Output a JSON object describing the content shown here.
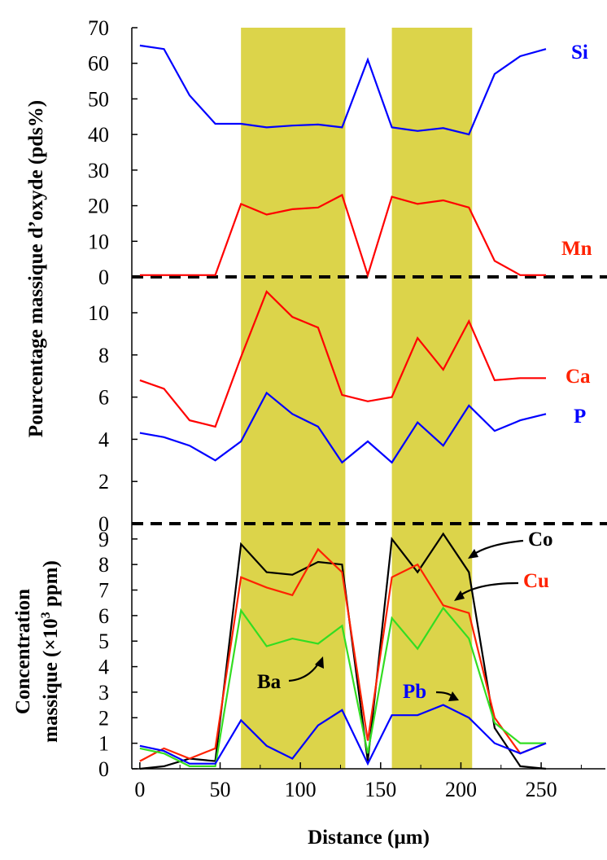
{
  "chart_data": {
    "type": "line",
    "xlabel": "Distance (µm)",
    "x_ticks": [
      "0",
      "50",
      "100",
      "150",
      "200",
      "250"
    ],
    "xlim": [
      -5,
      290
    ],
    "colors": {
      "band": "#dcd44a",
      "Si": "#0000ff",
      "Mn": "#ff0000",
      "Ca": "#ff0000",
      "P": "#0000ff",
      "Co": "#000000",
      "Cu": "#ff2200",
      "Ba": "#33dd22",
      "Pb": "#0000ff"
    },
    "shaded_bands": [
      [
        63,
        128
      ],
      [
        157,
        207
      ]
    ],
    "panels": [
      {
        "id": "top",
        "ylabel": "Pourcentage massique d’oxyde (pds%)",
        "ylim": [
          0,
          70
        ],
        "y_ticks": [
          "0",
          "10",
          "20",
          "30",
          "40",
          "50",
          "60",
          "70"
        ],
        "series": [
          {
            "name": "Si",
            "x": [
              0,
              15,
              31,
              47,
              63,
              79,
              95,
              111,
              126,
              142,
              157,
              173,
              189,
              205,
              221,
              237,
              253
            ],
            "values": [
              65,
              64,
              51,
              43,
              43,
              42,
              42.5,
              42.8,
              42,
              61,
              42,
              41,
              41.8,
              40,
              57,
              62,
              64
            ]
          },
          {
            "name": "Mn",
            "x": [
              0,
              15,
              31,
              47,
              63,
              79,
              95,
              111,
              126,
              142,
              157,
              173,
              189,
              205,
              221,
              237,
              253
            ],
            "values": [
              0.5,
              0.5,
              0.5,
              0.5,
              20.5,
              17.5,
              19,
              19.5,
              23,
              0.5,
              22.5,
              20.5,
              21.5,
              19.5,
              4.5,
              0.5,
              0.5
            ]
          }
        ]
      },
      {
        "id": "middle",
        "ylim": [
          0,
          11.7
        ],
        "y_ticks": [
          "0",
          "2",
          "4",
          "6",
          "8",
          "10"
        ],
        "series": [
          {
            "name": "Ca",
            "x": [
              0,
              15,
              31,
              47,
              63,
              79,
              95,
              111,
              126,
              142,
              157,
              173,
              189,
              205,
              221,
              237,
              253
            ],
            "values": [
              6.8,
              6.4,
              4.9,
              4.6,
              7.9,
              11,
              9.8,
              9.3,
              6.1,
              5.8,
              6,
              8.8,
              7.3,
              9.6,
              6.8,
              6.9,
              6.9
            ]
          },
          {
            "name": "P",
            "x": [
              0,
              15,
              31,
              47,
              63,
              79,
              95,
              111,
              126,
              142,
              157,
              173,
              189,
              205,
              221,
              237,
              253
            ],
            "values": [
              4.3,
              4.1,
              3.7,
              3,
              3.9,
              6.2,
              5.2,
              4.6,
              2.9,
              3.9,
              2.9,
              4.8,
              3.7,
              5.6,
              4.4,
              4.9,
              5.2
            ]
          }
        ]
      },
      {
        "id": "bottom",
        "ylabel_line1": "Concentration",
        "ylabel_line2_pre": "massique (×10",
        "ylabel_sup": "3",
        "ylabel_line2_post": " ppm)",
        "ylim": [
          0,
          9.6
        ],
        "y_ticks": [
          "0",
          "1",
          "2",
          "3",
          "4",
          "5",
          "6",
          "7",
          "8",
          "9"
        ],
        "series": [
          {
            "name": "Co",
            "x": [
              0,
              15,
              31,
              47,
              63,
              79,
              95,
              111,
              126,
              142,
              157,
              173,
              189,
              205,
              221,
              237,
              253
            ],
            "values": [
              -0.3,
              0.1,
              0.4,
              0.3,
              8.8,
              7.7,
              7.6,
              8.1,
              8,
              0.3,
              9,
              7.7,
              9.2,
              7.7,
              1.6,
              0.1,
              0
            ]
          },
          {
            "name": "Cu",
            "x": [
              0,
              15,
              31,
              47,
              63,
              79,
              95,
              111,
              126,
              142,
              157,
              173,
              189,
              205,
              221,
              237,
              253
            ],
            "values": [
              0.3,
              0.8,
              0.4,
              0.8,
              7.5,
              7.1,
              6.8,
              8.6,
              7.7,
              1.1,
              7.5,
              8,
              6.4,
              6.1,
              2,
              0.6,
              1
            ]
          },
          {
            "name": "Ba",
            "x": [
              0,
              15,
              31,
              47,
              63,
              79,
              95,
              111,
              126,
              142,
              157,
              173,
              189,
              205,
              221,
              237,
              253
            ],
            "values": [
              0.8,
              0.6,
              0.1,
              0.1,
              6.2,
              4.8,
              5.1,
              4.9,
              5.6,
              0.6,
              5.9,
              4.7,
              6.3,
              5.1,
              1.8,
              1,
              1
            ]
          },
          {
            "name": "Pb",
            "x": [
              0,
              15,
              31,
              47,
              63,
              79,
              95,
              111,
              126,
              142,
              157,
              173,
              189,
              205,
              221,
              237,
              253
            ],
            "values": [
              0.9,
              0.7,
              0.2,
              0.2,
              1.9,
              0.9,
              0.4,
              1.7,
              2.3,
              0.2,
              2.1,
              2.1,
              2.5,
              2,
              1,
              0.6,
              1
            ]
          }
        ]
      }
    ]
  }
}
